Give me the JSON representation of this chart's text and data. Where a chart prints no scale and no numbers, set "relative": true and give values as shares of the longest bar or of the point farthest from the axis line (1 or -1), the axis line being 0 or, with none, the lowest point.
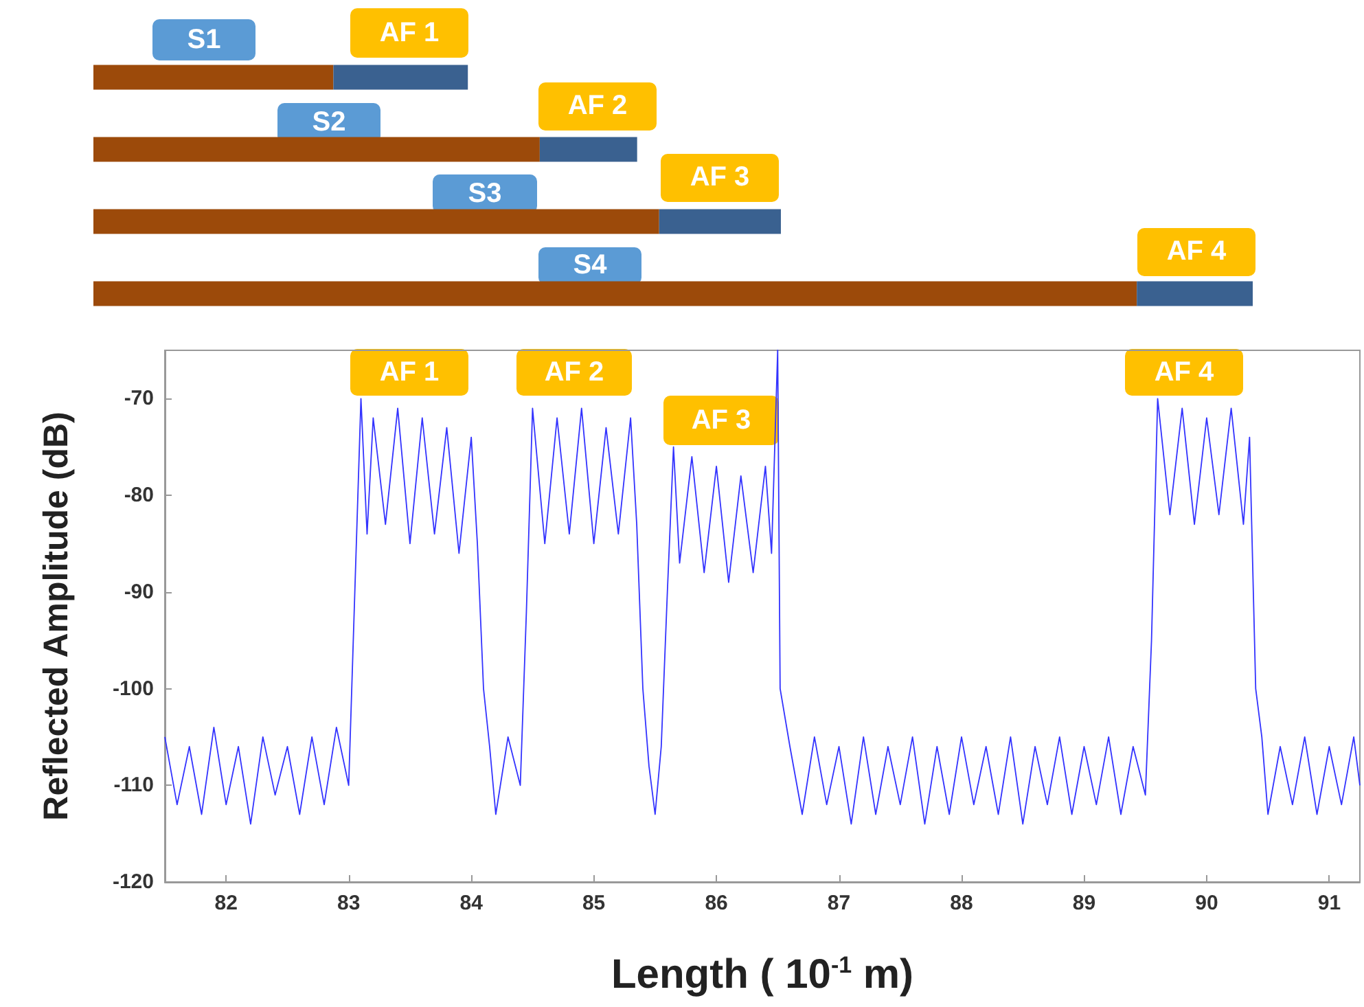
{
  "chart_data": [
    {
      "type": "bar",
      "orientation": "horizontal",
      "stacked": true,
      "relative": true,
      "categories": [
        null,
        null,
        null,
        null
      ],
      "series": [
        {
          "color": "#9c4a0a",
          "values": [
            0.207,
            0.385,
            0.488,
            0.9
          ]
        },
        {
          "color": "#3a6190",
          "values": [
            0.116,
            0.084,
            0.105,
            0.1
          ]
        }
      ],
      "annotations": [
        "S1",
        "AF 1",
        "S2",
        "AF 2",
        "S3",
        "AF 3",
        "S4",
        "AF 4"
      ]
    },
    {
      "type": "line",
      "xlabel": "Length ( 10$^{-1}$ m)",
      "ylabel": "Reflected Amplitude (dB)",
      "xlim": [
        81.5,
        91.25
      ],
      "ylim": [
        -120,
        -65
      ],
      "xticks": [
        82,
        83,
        84,
        85,
        86,
        87,
        88,
        89,
        90,
        91
      ],
      "yticks": [
        -120,
        -110,
        -100,
        -90,
        -80,
        -70
      ],
      "grid": false,
      "marker": "none",
      "line_style": "solid",
      "series": [
        {
          "color": "#3333ff",
          "x": [
            81.5,
            81.6,
            81.7,
            81.8,
            81.9,
            82.0,
            82.1,
            82.2,
            82.3,
            82.4,
            82.5,
            82.6,
            82.7,
            82.8,
            82.9,
            83.0,
            83.05,
            83.1,
            83.15,
            83.2,
            83.3,
            83.4,
            83.5,
            83.6,
            83.7,
            83.8,
            83.9,
            84.0,
            84.05,
            84.1,
            84.15,
            84.2,
            84.3,
            84.4,
            84.45,
            84.5,
            84.6,
            84.7,
            84.8,
            84.9,
            85.0,
            85.1,
            85.2,
            85.3,
            85.35,
            85.4,
            85.45,
            85.5,
            85.55,
            85.6,
            85.65,
            85.7,
            85.8,
            85.9,
            86.0,
            86.1,
            86.2,
            86.3,
            86.4,
            86.45,
            86.5,
            86.52,
            86.6,
            86.7,
            86.8,
            86.9,
            87.0,
            87.1,
            87.2,
            87.3,
            87.4,
            87.5,
            87.6,
            87.7,
            87.8,
            87.9,
            88.0,
            88.1,
            88.2,
            88.3,
            88.4,
            88.5,
            88.6,
            88.7,
            88.8,
            88.9,
            89.0,
            89.1,
            89.2,
            89.3,
            89.4,
            89.5,
            89.55,
            89.6,
            89.7,
            89.8,
            89.9,
            90.0,
            90.1,
            90.2,
            90.3,
            90.35,
            90.4,
            90.45,
            90.5,
            90.6,
            90.7,
            90.8,
            90.9,
            91.0,
            91.1,
            91.2,
            91.25
          ],
          "values": [
            -105,
            -112,
            -106,
            -113,
            -104,
            -112,
            -106,
            -114,
            -105,
            -111,
            -106,
            -113,
            -105,
            -112,
            -104,
            -110,
            -90,
            -70,
            -84,
            -72,
            -83,
            -71,
            -85,
            -72,
            -84,
            -73,
            -86,
            -74,
            -85,
            -100,
            -106,
            -113,
            -105,
            -110,
            -92,
            -71,
            -85,
            -72,
            -84,
            -71,
            -85,
            -73,
            -84,
            -72,
            -83,
            -100,
            -108,
            -113,
            -106,
            -90,
            -75,
            -87,
            -76,
            -88,
            -77,
            -89,
            -78,
            -88,
            -77,
            -86,
            -65,
            -100,
            -106,
            -113,
            -105,
            -112,
            -106,
            -114,
            -105,
            -113,
            -106,
            -112,
            -105,
            -114,
            -106,
            -113,
            -105,
            -112,
            -106,
            -113,
            -105,
            -114,
            -106,
            -112,
            -105,
            -113,
            -106,
            -112,
            -105,
            -113,
            -106,
            -111,
            -95,
            -70,
            -82,
            -71,
            -83,
            -72,
            -82,
            -71,
            -83,
            -74,
            -100,
            -105,
            -113,
            -106,
            -112,
            -105,
            -113,
            -106,
            -112,
            -105,
            -110
          ]
        }
      ],
      "annotations": [
        "AF 1",
        "AF 2",
        "AF 3",
        "AF 4"
      ]
    }
  ]
}
